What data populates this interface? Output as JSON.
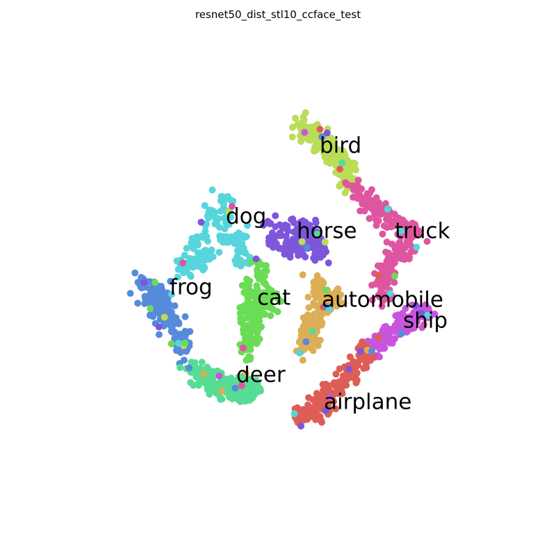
{
  "chart_data": {
    "type": "scatter",
    "title": "resnet50_dist_stl10_ccface_test",
    "xlabel": "",
    "ylabel": "",
    "axes_visible": false,
    "grid": false,
    "legend": "none",
    "xlim": [
      0,
      100
    ],
    "ylim": [
      0,
      100
    ],
    "series": [
      {
        "name": "bird",
        "color": "#bbdc56",
        "path": [
          [
            55,
            87
          ],
          [
            58,
            85
          ],
          [
            61,
            82
          ],
          [
            64,
            79
          ],
          [
            66,
            76
          ],
          [
            68,
            72
          ]
        ],
        "spread": 1.3,
        "count": 190,
        "label": {
          "text": "bird",
          "x": 60,
          "y": 81.5
        }
      },
      {
        "name": "truck",
        "color": "#de56a0",
        "path": [
          [
            68,
            72
          ],
          [
            71,
            69
          ],
          [
            75,
            65
          ],
          [
            79,
            63
          ],
          [
            83,
            61
          ],
          [
            81,
            58
          ],
          [
            77,
            54
          ],
          [
            75,
            50
          ],
          [
            75,
            45
          ]
        ],
        "spread": 1.2,
        "count": 230,
        "label": {
          "text": "truck",
          "x": 78,
          "y": 61
        }
      },
      {
        "name": "dog",
        "color": "#56d5dc",
        "path": [
          [
            36,
            70
          ],
          [
            38,
            67
          ],
          [
            37,
            63
          ],
          [
            34,
            66
          ],
          [
            32,
            62
          ],
          [
            30,
            58
          ],
          [
            28,
            54
          ],
          [
            27,
            51
          ],
          [
            40,
            61
          ],
          [
            41,
            57
          ],
          [
            41,
            54
          ]
        ],
        "spread": 1.1,
        "count": 170,
        "label": {
          "text": "dog",
          "x": 37.5,
          "y": 64.5
        }
      },
      {
        "name": "horse",
        "color": "#7e56dc",
        "path": [
          [
            48,
            63
          ],
          [
            51,
            61
          ],
          [
            53,
            62
          ],
          [
            56,
            62
          ],
          [
            58,
            61
          ],
          [
            55,
            58
          ],
          [
            52,
            57
          ],
          [
            49,
            59
          ],
          [
            59,
            58
          ],
          [
            60,
            55
          ]
        ],
        "spread": 1.3,
        "count": 160,
        "label": {
          "text": "horse",
          "x": 54.5,
          "y": 61
        }
      },
      {
        "name": "frog",
        "color": "#568bdc",
        "path": [
          [
            17,
            49
          ],
          [
            20,
            48
          ],
          [
            22,
            47
          ],
          [
            21,
            44
          ],
          [
            23,
            42
          ],
          [
            20,
            45
          ],
          [
            24,
            39
          ],
          [
            26,
            37
          ],
          [
            27,
            34
          ],
          [
            28,
            32
          ]
        ],
        "spread": 1.3,
        "count": 200,
        "label": {
          "text": "frog",
          "x": 24,
          "y": 47.5
        }
      },
      {
        "name": "cat",
        "color": "#6bdc56",
        "path": [
          [
            42,
            49
          ],
          [
            44,
            46
          ],
          [
            46,
            44
          ],
          [
            48,
            43
          ],
          [
            47,
            47
          ],
          [
            45,
            43
          ],
          [
            43,
            41
          ],
          [
            47,
            42
          ],
          [
            42,
            37
          ],
          [
            42,
            34
          ],
          [
            43,
            31
          ],
          [
            46,
            52
          ],
          [
            45,
            53
          ]
        ],
        "spread": 1.2,
        "count": 200,
        "label": {
          "text": "cat",
          "x": 45,
          "y": 45
        }
      },
      {
        "name": "automobile",
        "color": "#dcae56",
        "path": [
          [
            59,
            49
          ],
          [
            60,
            46
          ],
          [
            62,
            45
          ],
          [
            64,
            44
          ],
          [
            61,
            43
          ],
          [
            59,
            41
          ],
          [
            58,
            38
          ],
          [
            57,
            35
          ],
          [
            56,
            33
          ]
        ],
        "spread": 1.2,
        "count": 170,
        "label": {
          "text": "automobile",
          "x": 60.5,
          "y": 44.5
        }
      },
      {
        "name": "deer",
        "color": "#56dc95",
        "path": [
          [
            29,
            29
          ],
          [
            31,
            27
          ],
          [
            34,
            26
          ],
          [
            36,
            24
          ],
          [
            38,
            23
          ],
          [
            41,
            23
          ],
          [
            43,
            22
          ],
          [
            44,
            24
          ],
          [
            37,
            25
          ]
        ],
        "spread": 1.3,
        "count": 200,
        "label": {
          "text": "deer",
          "x": 40,
          "y": 26.5
        }
      },
      {
        "name": "ship",
        "color": "#c856dc",
        "path": [
          [
            86,
            42
          ],
          [
            83,
            41
          ],
          [
            80,
            39
          ],
          [
            77,
            37
          ],
          [
            75,
            35
          ],
          [
            73,
            33
          ],
          [
            71,
            32
          ]
        ],
        "spread": 1.2,
        "count": 170,
        "label": {
          "text": "ship",
          "x": 80,
          "y": 39.5
        }
      },
      {
        "name": "airplane",
        "color": "#dc5e56",
        "path": [
          [
            71,
            32
          ],
          [
            69,
            29
          ],
          [
            67,
            26
          ],
          [
            64,
            24
          ],
          [
            61,
            21
          ],
          [
            58,
            19
          ],
          [
            55,
            16
          ],
          [
            57,
            17
          ],
          [
            60,
            18
          ],
          [
            62,
            21
          ]
        ],
        "spread": 1.2,
        "count": 200,
        "label": {
          "text": "airplane",
          "x": 61,
          "y": 20
        }
      }
    ]
  }
}
